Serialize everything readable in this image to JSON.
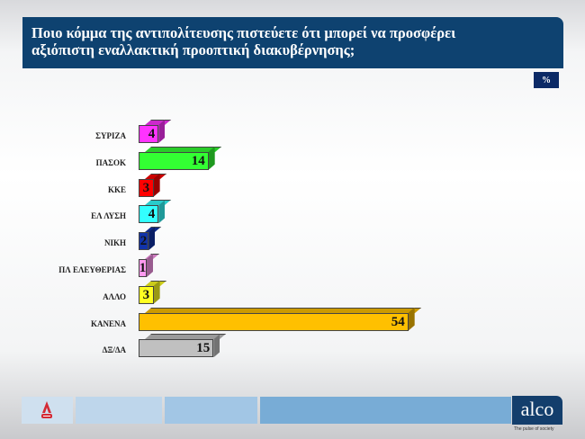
{
  "header": {
    "title_line1": "Ποιο κόμμα της αντιπολίτευσης πιστεύετε ότι μπορεί να προσφέρει",
    "title_line2": "αξιόπιστη εναλλακτική προοπτική διακυβέρνησης;",
    "unit_badge": "%"
  },
  "chart_data": {
    "type": "bar",
    "orientation": "horizontal",
    "title": "Ποιο κόμμα της αντιπολίτευσης πιστεύετε ότι μπορεί να προσφέρει αξιόπιστη εναλλακτική προοπτική διακυβέρνησης;",
    "unit": "%",
    "categories": [
      "ΣΥΡΙΖΑ",
      "ΠΑΣΟΚ",
      "ΚΚΕ",
      "ΕΛ ΛΥΣΗ",
      "ΝΙΚΗ",
      "ΠΛ ΕΛΕΥΘΕΡΙΑΣ",
      "ΑΛΛΟ",
      "ΚΑΝΕΝΑ",
      "ΔΞ/ΔΑ"
    ],
    "values": [
      4,
      14,
      3,
      4,
      2,
      1,
      3,
      54,
      15
    ],
    "colors": [
      "#ff33ff",
      "#33ff33",
      "#ff0000",
      "#33ffff",
      "#1133aa",
      "#ff99ee",
      "#ffff22",
      "#ffc000",
      "#c0c0c0"
    ],
    "xlabel": "",
    "ylabel": "",
    "grid": false,
    "legend": "none",
    "style": "3d"
  },
  "footer": {
    "brand": "alco",
    "tagline": "The pulse of society",
    "left_logo": "ALPHA NEWS"
  }
}
